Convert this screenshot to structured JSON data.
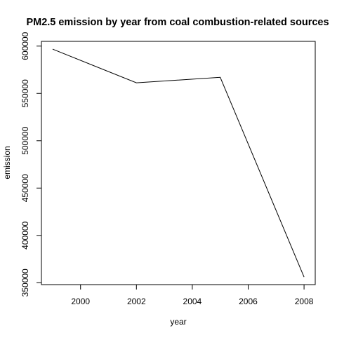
{
  "chart_data": {
    "type": "line",
    "title": "PM2.5 emission by year from coal combustion-related sources",
    "xlabel": "year",
    "ylabel": "emission",
    "x": [
      1999,
      2002,
      2005,
      2008
    ],
    "series": [
      {
        "values": [
          596800,
          561200,
          567000,
          356000
        ]
      }
    ],
    "xlim": [
      1998.6,
      2008.4
    ],
    "ylim": [
      348000,
      605000
    ],
    "xticks": [
      2000,
      2002,
      2004,
      2006,
      2008
    ],
    "yticks": [
      350000,
      400000,
      450000,
      500000,
      550000,
      600000
    ],
    "xtick_labels": [
      "2000",
      "2002",
      "2004",
      "2006",
      "2008"
    ],
    "ytick_labels": [
      "350000",
      "400000",
      "450000",
      "500000",
      "550000",
      "600000"
    ],
    "grid": false,
    "line_color": "#000000"
  }
}
